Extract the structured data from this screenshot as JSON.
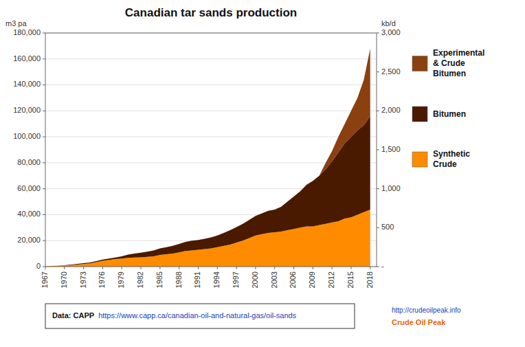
{
  "chart_data": {
    "type": "area",
    "stacked": true,
    "title": "Canadian tar sands production",
    "y_label": "m3 pa",
    "y2_label": "kb/d",
    "x": [
      1967,
      1968,
      1969,
      1970,
      1971,
      1972,
      1973,
      1974,
      1975,
      1976,
      1977,
      1978,
      1979,
      1980,
      1981,
      1982,
      1983,
      1984,
      1985,
      1986,
      1987,
      1988,
      1989,
      1990,
      1991,
      1992,
      1993,
      1994,
      1995,
      1996,
      1997,
      1998,
      1999,
      2000,
      2001,
      2002,
      2003,
      2004,
      2005,
      2006,
      2007,
      2008,
      2009,
      2010,
      2011,
      2012,
      2013,
      2014,
      2015,
      2016,
      2017,
      2018
    ],
    "series": [
      {
        "name": "Synthetic\nCrude",
        "color": "#FF8C00",
        "values": [
          200,
          350,
          500,
          800,
          1200,
          1600,
          2000,
          2500,
          3500,
          4500,
          5200,
          5800,
          6200,
          6800,
          7000,
          7200,
          7500,
          8000,
          9000,
          9500,
          10000,
          11000,
          12000,
          12500,
          13000,
          13500,
          14000,
          15000,
          16000,
          17000,
          18500,
          20000,
          22000,
          24000,
          25000,
          26000,
          26500,
          27000,
          28000,
          29000,
          30000,
          31000,
          31000,
          32000,
          33000,
          34000,
          35000,
          37000,
          38000,
          40000,
          42000,
          44000
        ]
      },
      {
        "name": "Bitumen",
        "color": "#4A1A00",
        "values": [
          100,
          150,
          200,
          300,
          400,
          500,
          600,
          700,
          800,
          900,
          1000,
          1200,
          1800,
          2500,
          3000,
          3500,
          4000,
          4500,
          5000,
          5500,
          6000,
          6500,
          7000,
          7500,
          7500,
          8000,
          8500,
          9000,
          10000,
          11000,
          12000,
          13000,
          14000,
          15000,
          16000,
          17000,
          17500,
          19000,
          22000,
          25000,
          28000,
          32000,
          35000,
          38000,
          42000,
          47000,
          53000,
          58000,
          62000,
          65000,
          67000,
          72000
        ]
      },
      {
        "name": "Experimental\n& Crude\nBitumen",
        "color": "#8B4010",
        "values": [
          0,
          0,
          0,
          0,
          0,
          0,
          0,
          0,
          0,
          0,
          0,
          0,
          0,
          0,
          0,
          0,
          0,
          0,
          0,
          0,
          0,
          0,
          0,
          0,
          0,
          0,
          0,
          0,
          0,
          0,
          0,
          0,
          0,
          0,
          0,
          0,
          0,
          0,
          0,
          0,
          0,
          0,
          0,
          0,
          5000,
          8000,
          12000,
          15000,
          20000,
          25000,
          35000,
          52000
        ]
      }
    ],
    "xlim": [
      1967,
      2019
    ],
    "xticks": [
      1967,
      1970,
      1973,
      1976,
      1979,
      1982,
      1985,
      1988,
      1991,
      1994,
      1997,
      2000,
      2003,
      2006,
      2009,
      2012,
      2015,
      2018
    ],
    "ylim": [
      0,
      180000
    ],
    "yticks": [
      0,
      {
        "value": 20000,
        "label": "20,000"
      },
      {
        "value": 40000,
        "label": "40,000"
      },
      {
        "value": 60000,
        "label": "60,000"
      },
      {
        "value": 80000,
        "label": "80,000"
      },
      {
        "value": 100000,
        "label": "100,000"
      },
      {
        "value": 120000,
        "label": "120,000"
      },
      {
        "value": 140000,
        "label": "140,000"
      },
      {
        "value": 160000,
        "label": "160,000"
      },
      {
        "value": 180000,
        "label": "180,000"
      }
    ],
    "y2lim": [
      0,
      3000
    ],
    "y2ticks": [
      {
        "value": 0,
        "label": "-"
      },
      500,
      {
        "value": 1000,
        "label": "1,000"
      },
      {
        "value": 1500,
        "label": "1,500"
      },
      {
        "value": 2000,
        "label": "2,000"
      },
      {
        "value": 2500,
        "label": "2,500"
      },
      {
        "value": 3000,
        "label": "3,000"
      }
    ],
    "grid": true,
    "legend": "right",
    "annotations": [
      "Data: CAPP",
      "https://www.capp.ca/canadian-oil-and-natural-gas/oil-sands",
      "http://crudeoilpeak.info",
      "Crude Oil Peak"
    ]
  }
}
